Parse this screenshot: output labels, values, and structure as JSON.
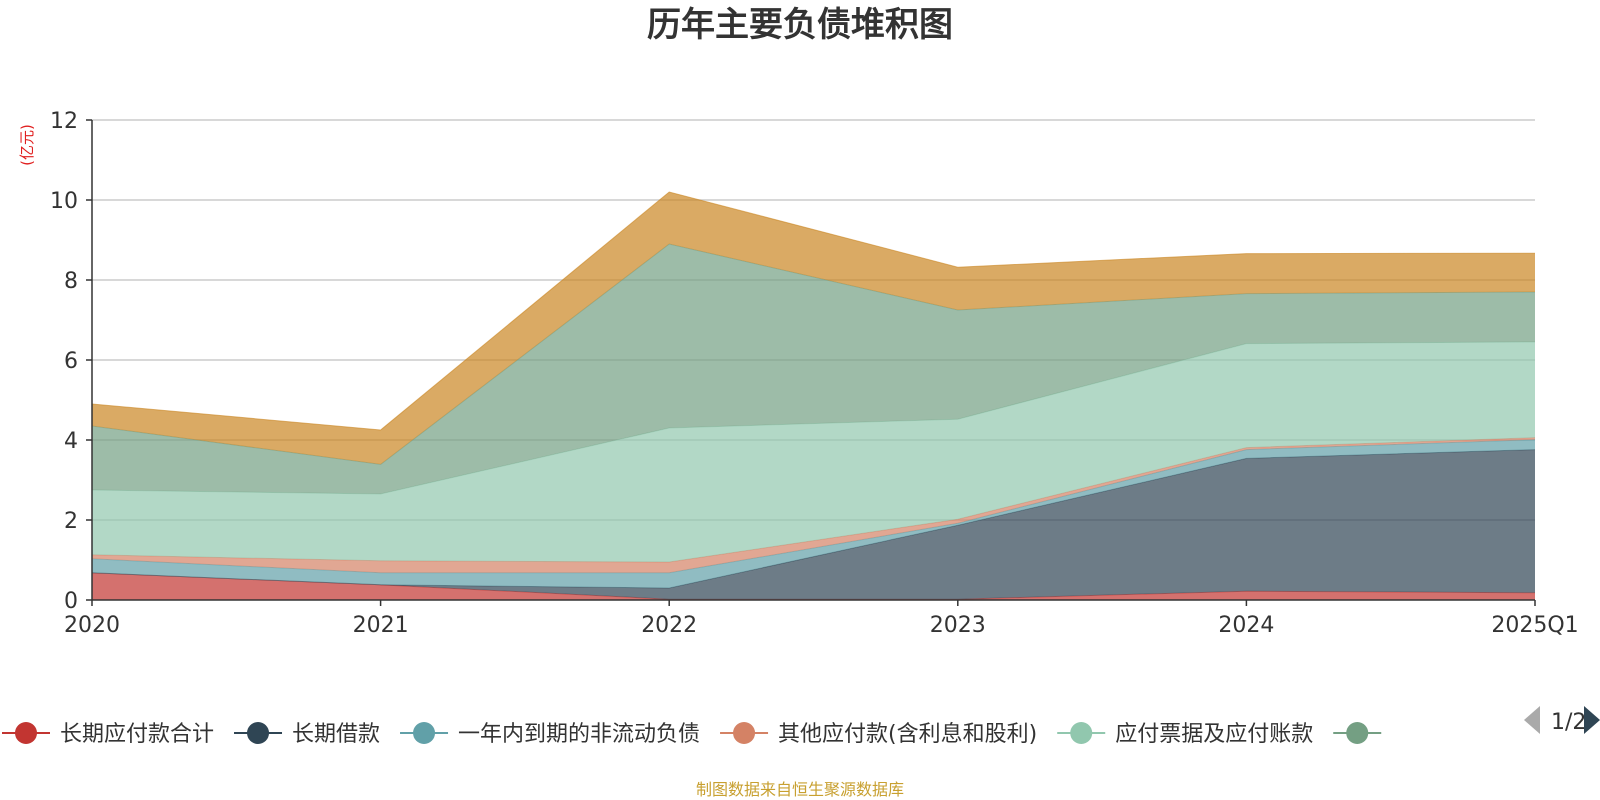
{
  "chart_data": {
    "type": "area",
    "stacked": true,
    "title": "历年主要负债堆积图",
    "y_unit": "(亿元)",
    "ylim": [
      0,
      12
    ],
    "y_ticks": [
      0,
      2,
      4,
      6,
      8,
      10,
      12
    ],
    "grid": true,
    "legend_position": "bottom",
    "categories": [
      "2020",
      "2021",
      "2022",
      "2023",
      "2024",
      "2025Q1"
    ],
    "series": [
      {
        "name": "长期应付款合计",
        "color": "#c23531",
        "values": [
          0.68,
          0.38,
          0.02,
          0.02,
          0.22,
          0.18
        ]
      },
      {
        "name": "长期借款",
        "color": "#2f4554",
        "values": [
          0.0,
          0.0,
          0.28,
          1.85,
          3.32,
          3.58
        ]
      },
      {
        "name": "一年内到期的非流动负债",
        "color": "#61a0a8",
        "values": [
          0.35,
          0.3,
          0.38,
          0.05,
          0.22,
          0.25
        ]
      },
      {
        "name": "其他应付款(含利息和股利)",
        "color": "#d48265",
        "values": [
          0.1,
          0.3,
          0.27,
          0.1,
          0.05,
          0.05
        ]
      },
      {
        "name": "应付票据及应付账款",
        "color": "#91c7ae",
        "values": [
          1.62,
          1.67,
          3.35,
          2.5,
          2.6,
          2.39
        ]
      },
      {
        "name": "",
        "color": "#749f83",
        "values": [
          1.6,
          0.74,
          4.6,
          2.73,
          1.25,
          1.25
        ]
      },
      {
        "name": "",
        "color": "#ca8622",
        "values": [
          0.55,
          0.86,
          1.3,
          1.07,
          1.0,
          0.97
        ]
      }
    ]
  },
  "legend": {
    "items": [
      {
        "label": "长期应付款合计",
        "color": "#c23531"
      },
      {
        "label": "长期借款",
        "color": "#2f4554"
      },
      {
        "label": "一年内到期的非流动负债",
        "color": "#61a0a8"
      },
      {
        "label": "其他应付款(含利息和股利)",
        "color": "#d48265"
      },
      {
        "label": "应付票据及应付账款",
        "color": "#91c7ae"
      },
      {
        "label": "",
        "color": "#749f83"
      }
    ],
    "page": "1/2"
  },
  "source": "制图数据来自恒生聚源数据库"
}
